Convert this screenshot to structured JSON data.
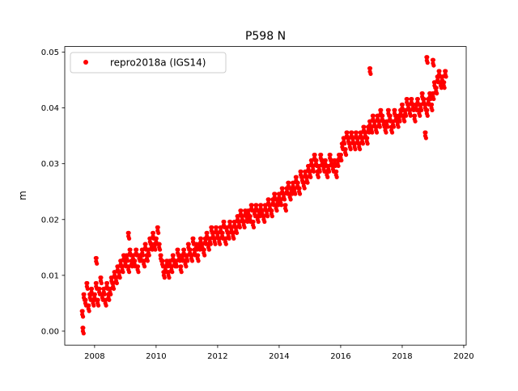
{
  "chart_data": {
    "type": "scatter",
    "title": "P598 N",
    "xlabel": "",
    "ylabel": "m",
    "xlim": [
      2007.03,
      2020.08
    ],
    "ylim": [
      -0.0025,
      0.051
    ],
    "xticks": [
      2008,
      2010,
      2012,
      2014,
      2016,
      2018,
      2020
    ],
    "xtick_labels": [
      "2008",
      "2010",
      "2012",
      "2014",
      "2016",
      "2018",
      "2020"
    ],
    "yticks": [
      0.0,
      0.01,
      0.02,
      0.03,
      0.04,
      0.05
    ],
    "ytick_labels": [
      "0.00",
      "0.01",
      "0.02",
      "0.03",
      "0.04",
      "0.05"
    ],
    "grid": false,
    "legend_position": "top-left",
    "series": [
      {
        "name": "repro2018a (IGS14)",
        "color": "#ff0000",
        "marker": "circle",
        "x_start": 2007.6,
        "x_step": 0.05,
        "values": [
          0.003,
          0.006,
          0.005,
          0.008,
          0.004,
          0.006,
          0.007,
          0.005,
          0.006,
          0.008,
          0.005,
          0.007,
          0.009,
          0.006,
          0.007,
          0.005,
          0.008,
          0.006,
          0.007,
          0.009,
          0.008,
          0.01,
          0.009,
          0.011,
          0.01,
          0.012,
          0.011,
          0.013,
          0.012,
          0.013,
          0.011,
          0.014,
          0.012,
          0.013,
          0.012,
          0.014,
          0.011,
          0.013,
          0.013,
          0.014,
          0.012,
          0.015,
          0.013,
          0.014,
          0.016,
          0.015,
          0.017,
          0.015,
          0.016,
          0.018,
          0.015,
          0.013,
          0.012,
          0.01,
          0.011,
          0.012,
          0.01,
          0.012,
          0.011,
          0.013,
          0.012,
          0.012,
          0.014,
          0.013,
          0.011,
          0.013,
          0.014,
          0.012,
          0.013,
          0.015,
          0.014,
          0.013,
          0.016,
          0.014,
          0.015,
          0.013,
          0.015,
          0.016,
          0.015,
          0.014,
          0.016,
          0.017,
          0.015,
          0.016,
          0.018,
          0.017,
          0.016,
          0.018,
          0.017,
          0.016,
          0.018,
          0.017,
          0.019,
          0.016,
          0.018,
          0.017,
          0.019,
          0.018,
          0.017,
          0.019,
          0.018,
          0.02,
          0.019,
          0.021,
          0.02,
          0.019,
          0.021,
          0.02,
          0.021,
          0.02,
          0.022,
          0.019,
          0.021,
          0.022,
          0.02,
          0.021,
          0.022,
          0.021,
          0.02,
          0.022,
          0.021,
          0.023,
          0.022,
          0.021,
          0.023,
          0.024,
          0.022,
          0.023,
          0.024,
          0.023,
          0.025,
          0.024,
          0.022,
          0.025,
          0.026,
          0.024,
          0.025,
          0.026,
          0.025,
          0.027,
          0.026,
          0.025,
          0.028,
          0.027,
          0.026,
          0.028,
          0.027,
          0.029,
          0.028,
          0.03,
          0.029,
          0.031,
          0.03,
          0.028,
          0.029,
          0.031,
          0.03,
          0.029,
          0.03,
          0.028,
          0.029,
          0.031,
          0.03,
          0.029,
          0.03,
          0.028,
          0.03,
          0.031,
          0.031,
          0.033,
          0.034,
          0.032,
          0.035,
          0.034,
          0.033,
          0.035,
          0.034,
          0.033,
          0.035,
          0.034,
          0.033,
          0.035,
          0.034,
          0.036,
          0.035,
          0.034,
          0.036,
          0.037,
          0.036,
          0.038,
          0.037,
          0.036,
          0.038,
          0.037,
          0.039,
          0.038,
          0.037,
          0.036,
          0.037,
          0.039,
          0.038,
          0.036,
          0.037,
          0.039,
          0.038,
          0.037,
          0.038,
          0.039,
          0.04,
          0.038,
          0.039,
          0.041,
          0.04,
          0.039,
          0.041,
          0.04,
          0.038,
          0.04,
          0.041,
          0.039,
          0.04,
          0.042,
          0.041,
          0.04,
          0.039,
          0.041,
          0.042,
          0.04,
          0.042,
          0.044,
          0.043,
          0.045,
          0.046,
          0.044,
          0.045,
          0.044,
          0.046
        ],
        "extra_points": [
          [
            2007.62,
            0.0
          ],
          [
            2008.05,
            0.0125
          ],
          [
            2009.1,
            0.017
          ],
          [
            2016.95,
            0.0465
          ],
          [
            2018.8,
            0.0485
          ],
          [
            2018.75,
            0.035
          ],
          [
            2019.0,
            0.048
          ]
        ]
      }
    ]
  }
}
